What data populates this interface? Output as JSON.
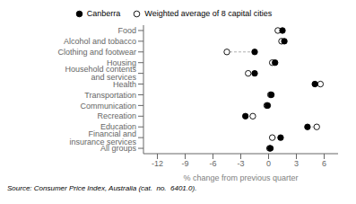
{
  "chart_data": {
    "type": "scatter",
    "categories": [
      "Food",
      "Alcohol and tobacco",
      "Clothing and footwear",
      "Housing",
      "Household contents and services",
      "Health",
      "Transportation",
      "Communication",
      "Recreation",
      "Education",
      "Financial and insurance services",
      "All groups"
    ],
    "series": [
      {
        "name": "Canberra",
        "color": "#000000",
        "marker": "circle",
        "values": [
          1.5,
          1.7,
          -1.5,
          0.7,
          -1.5,
          5.0,
          0.3,
          -0.1,
          -2.5,
          4.2,
          1.3,
          0.2
        ]
      },
      {
        "name": "Weighted average of 8 capital cities",
        "color": "#ffffff",
        "marker": "circle",
        "values": [
          1.0,
          1.4,
          -4.5,
          0.4,
          -2.2,
          5.6,
          0.2,
          -0.2,
          -1.7,
          5.2,
          0.4,
          0.1
        ]
      }
    ],
    "xlabel": "% change from previous quarter",
    "xlim": [
      -13.5,
      7.5
    ],
    "xticks": [
      -12,
      -9,
      -6,
      -3,
      0,
      3,
      6
    ],
    "legend": "top",
    "annotations": [
      "Source: Consumer Price Index, Australia (cat.  no.  6401.0)."
    ]
  }
}
